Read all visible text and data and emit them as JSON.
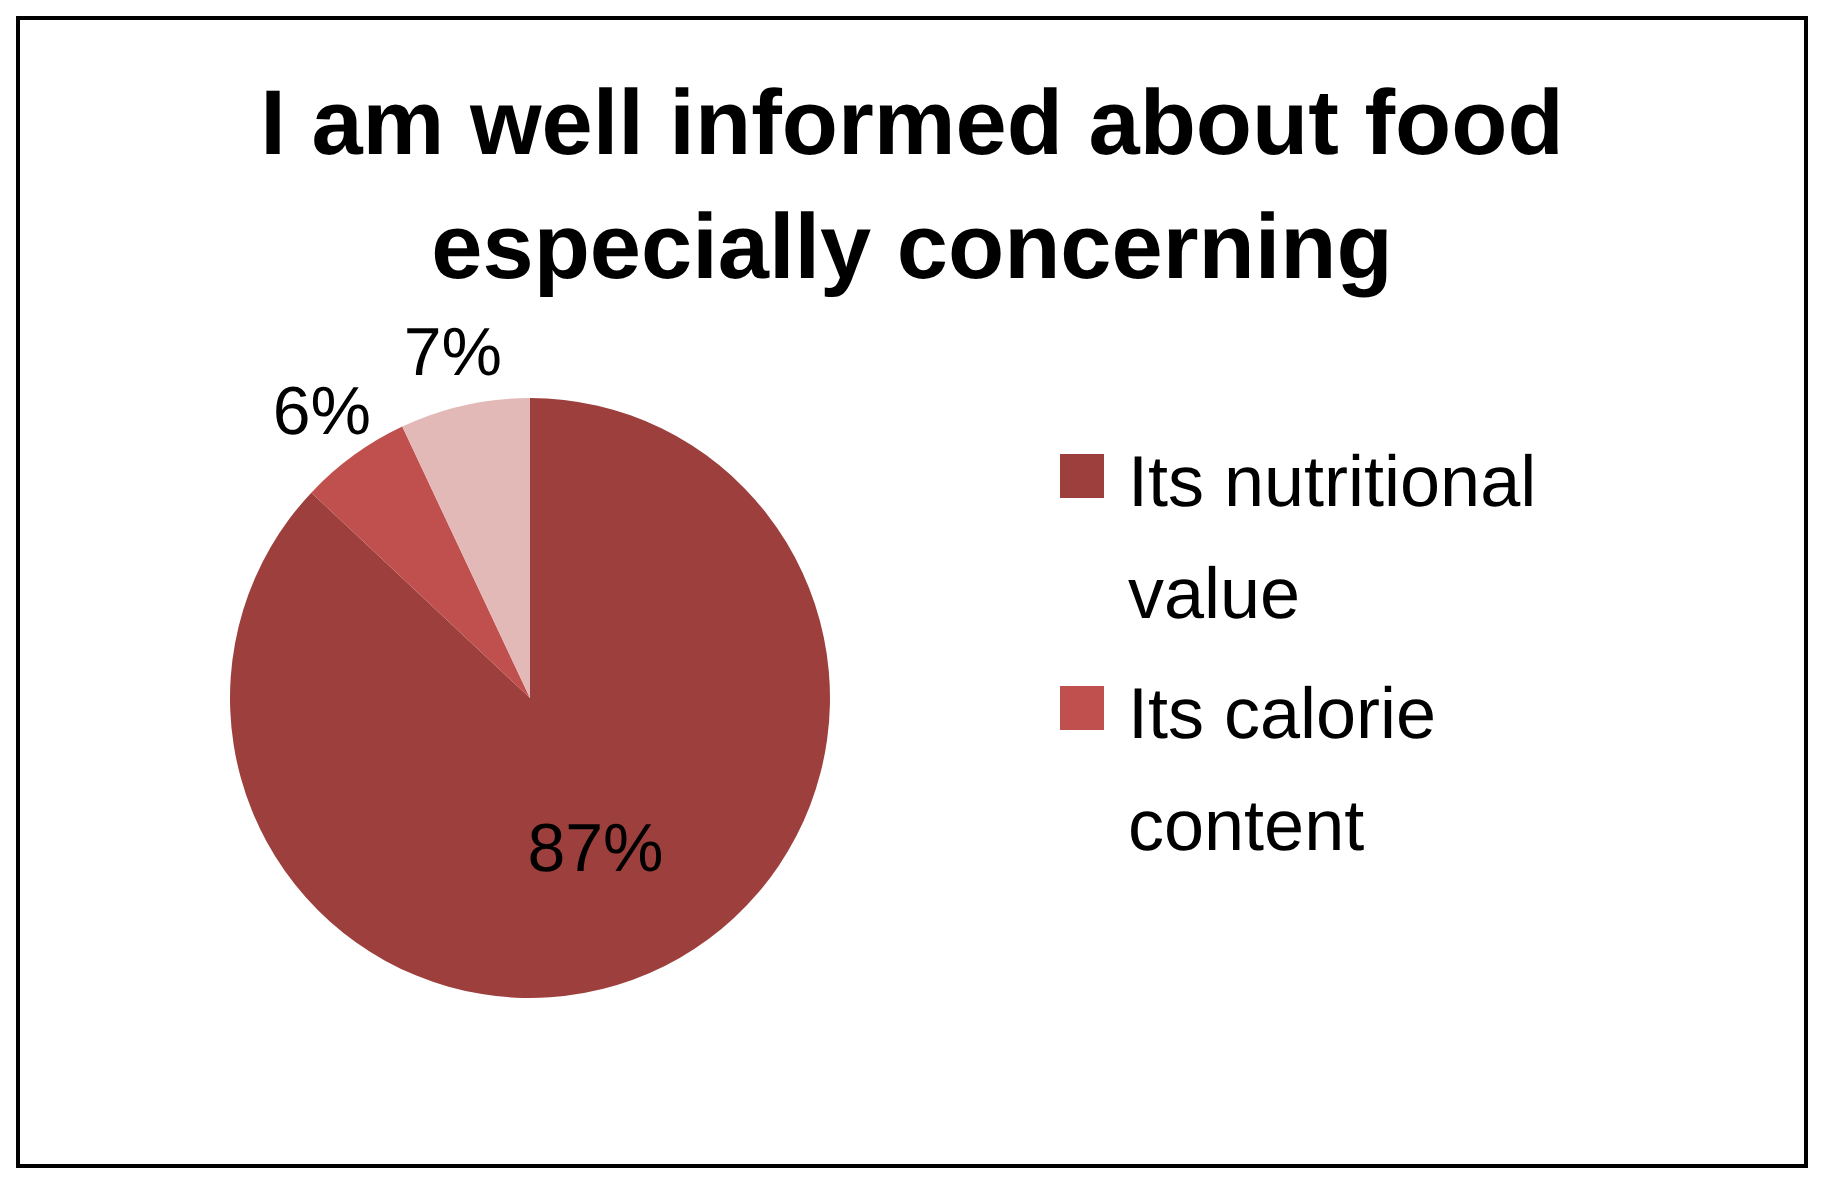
{
  "chart_data": {
    "type": "pie",
    "title": "I am well informed about food especially concerning",
    "categories": [
      "Its nutritional value",
      "Its calorie content",
      null
    ],
    "values": [
      87,
      6,
      7
    ],
    "colors": [
      "#9c3f3d",
      "#c0504d",
      "#e3b9b8"
    ],
    "value_labels": [
      "87%",
      "6%",
      "7%"
    ],
    "legend": "right"
  }
}
